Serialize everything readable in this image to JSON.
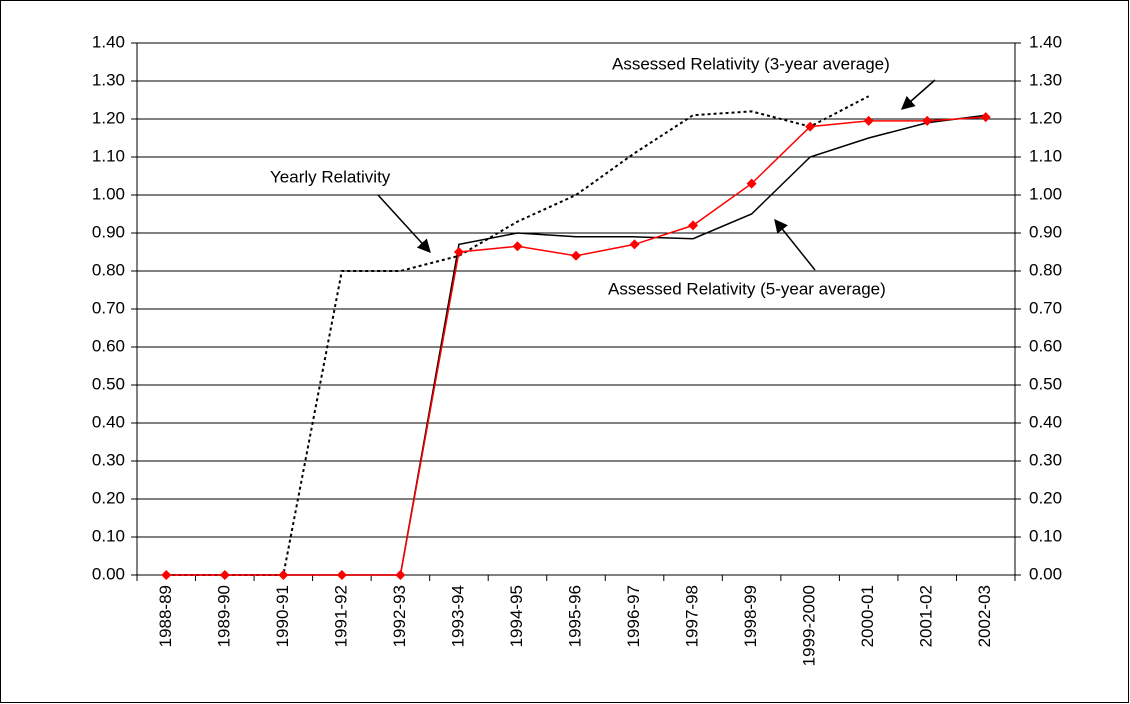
{
  "chart_data": {
    "type": "line",
    "categories": [
      "1988-89",
      "1989-90",
      "1990-91",
      "1991-92",
      "1992-93",
      "1993-94",
      "1994-95",
      "1995-96",
      "1996-97",
      "1997-98",
      "1998-99",
      "1999-2000",
      "2000-01",
      "2001-02",
      "2002-03"
    ],
    "series": [
      {
        "color": "#000000",
        "style": "dotted",
        "values": [
          0,
          0,
          0,
          0.8,
          0.8,
          0.84,
          0.93,
          1.0,
          1.11,
          1.21,
          1.22,
          1.18,
          1.26,
          null,
          null
        ]
      },
      {
        "color": "#000000",
        "style": "solid",
        "values": [
          0,
          0,
          0,
          0,
          0,
          0.87,
          0.9,
          0.89,
          0.89,
          0.885,
          0.95,
          1.1,
          1.15,
          1.19,
          1.21
        ]
      },
      {
        "color": "#ff0000",
        "style": "solid",
        "markers": true,
        "values": [
          0,
          0,
          0,
          0,
          0,
          0.85,
          0.865,
          0.84,
          0.87,
          0.92,
          1.03,
          1.18,
          1.195,
          1.195,
          1.205
        ]
      }
    ],
    "annotations": [
      "Assessed Relativity (3-year average)",
      "Yearly Relativity",
      "Assessed Relativity (5-year average)"
    ],
    "ylim": [
      0,
      1.4
    ],
    "yticks": [
      {
        "value": 0,
        "label": "0.00"
      },
      {
        "value": 0.1,
        "label": "0.10"
      },
      {
        "value": 0.2,
        "label": "0.20"
      },
      {
        "value": 0.3,
        "label": "0.30"
      },
      {
        "value": 0.4,
        "label": "0.40"
      },
      {
        "value": 0.5,
        "label": "0.50"
      },
      {
        "value": 0.6,
        "label": "0.60"
      },
      {
        "value": 0.7,
        "label": "0.70"
      },
      {
        "value": 0.8,
        "label": "0.80"
      },
      {
        "value": 0.9,
        "label": "0.90"
      },
      {
        "value": 1,
        "label": "1.00"
      },
      {
        "value": 1.1,
        "label": "1.10"
      },
      {
        "value": 1.2,
        "label": "1.20"
      },
      {
        "value": 1.3,
        "label": "1.30"
      },
      {
        "value": 1.4,
        "label": "1.40"
      }
    ],
    "y2lim": [
      0,
      1.4
    ],
    "y2ticks": [
      {
        "value": 0,
        "label": "0.00"
      },
      {
        "value": 0.1,
        "label": "0.10"
      },
      {
        "value": 0.2,
        "label": "0.20"
      },
      {
        "value": 0.3,
        "label": "0.30"
      },
      {
        "value": 0.4,
        "label": "0.40"
      },
      {
        "value": 0.5,
        "label": "0.50"
      },
      {
        "value": 0.6,
        "label": "0.60"
      },
      {
        "value": 0.7,
        "label": "0.70"
      },
      {
        "value": 0.8,
        "label": "0.80"
      },
      {
        "value": 0.9,
        "label": "0.90"
      },
      {
        "value": 1,
        "label": "1.00"
      },
      {
        "value": 1.1,
        "label": "1.10"
      },
      {
        "value": 1.2,
        "label": "1.20"
      },
      {
        "value": 1.3,
        "label": "1.30"
      },
      {
        "value": 1.4,
        "label": "1.40"
      }
    ],
    "grid": true
  }
}
